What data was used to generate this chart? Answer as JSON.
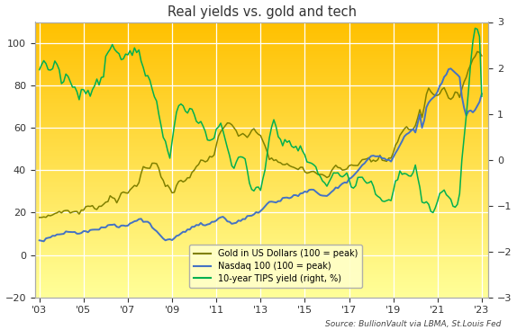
{
  "title": "Real yields vs. gold and tech",
  "source_text": "Source: BullionVault via LBMA, St.Louis Fed",
  "background_top": "#FFC000",
  "background_bottom": "#FFFF99",
  "left_ylim": [
    -20,
    110
  ],
  "right_ylim": [
    -3.0,
    3.0
  ],
  "left_yticks": [
    -20,
    0,
    20,
    40,
    60,
    80,
    100
  ],
  "right_yticks": [
    -3.0,
    -2.0,
    -1.0,
    0.0,
    1.0,
    2.0,
    3.0
  ],
  "xtick_years": [
    2003,
    2005,
    2007,
    2009,
    2011,
    2013,
    2015,
    2017,
    2019,
    2021,
    2023
  ],
  "xtick_labels": [
    "'03",
    "'05",
    "'07",
    "'09",
    "'11",
    "'13",
    "'15",
    "'17",
    "'19",
    "'21",
    "'23"
  ],
  "gold_color": "#808000",
  "nasdaq_color": "#4472C4",
  "tips_color": "#00B050",
  "legend_labels": [
    "Gold in US Dollars (100 = peak)",
    "Nasdaq 100 (100 = peak)",
    "10-year TIPS yield (right, %)"
  ],
  "gold_data": {
    "years": [
      2003.0,
      2003.1,
      2003.2,
      2003.3,
      2003.4,
      2003.5,
      2003.6,
      2003.7,
      2003.8,
      2003.9,
      2004.0,
      2004.1,
      2004.2,
      2004.3,
      2004.4,
      2004.5,
      2004.6,
      2004.7,
      2004.8,
      2004.9,
      2005.0,
      2005.1,
      2005.2,
      2005.3,
      2005.4,
      2005.5,
      2005.6,
      2005.7,
      2005.8,
      2005.9,
      2006.0,
      2006.1,
      2006.2,
      2006.3,
      2006.4,
      2006.5,
      2006.6,
      2006.7,
      2006.8,
      2006.9,
      2007.0,
      2007.1,
      2007.2,
      2007.3,
      2007.4,
      2007.5,
      2007.6,
      2007.7,
      2007.8,
      2007.9,
      2008.0,
      2008.1,
      2008.2,
      2008.3,
      2008.4,
      2008.5,
      2008.6,
      2008.7,
      2008.8,
      2008.9,
      2009.0,
      2009.1,
      2009.2,
      2009.3,
      2009.4,
      2009.5,
      2009.6,
      2009.7,
      2009.8,
      2009.9,
      2010.0,
      2010.1,
      2010.2,
      2010.3,
      2010.4,
      2010.5,
      2010.6,
      2010.7,
      2010.8,
      2010.9,
      2011.0,
      2011.1,
      2011.2,
      2011.3,
      2011.4,
      2011.5,
      2011.6,
      2011.7,
      2011.8,
      2011.9,
      2012.0,
      2012.1,
      2012.2,
      2012.3,
      2012.4,
      2012.5,
      2012.6,
      2012.7,
      2012.8,
      2012.9,
      2013.0,
      2013.1,
      2013.2,
      2013.3,
      2013.4,
      2013.5,
      2013.6,
      2013.7,
      2013.8,
      2013.9,
      2014.0,
      2014.1,
      2014.2,
      2014.3,
      2014.4,
      2014.5,
      2014.6,
      2014.7,
      2014.8,
      2014.9,
      2015.0,
      2015.1,
      2015.2,
      2015.3,
      2015.4,
      2015.5,
      2015.6,
      2015.7,
      2015.8,
      2015.9,
      2016.0,
      2016.1,
      2016.2,
      2016.3,
      2016.4,
      2016.5,
      2016.6,
      2016.7,
      2016.8,
      2016.9,
      2017.0,
      2017.1,
      2017.2,
      2017.3,
      2017.4,
      2017.5,
      2017.6,
      2017.7,
      2017.8,
      2017.9,
      2018.0,
      2018.1,
      2018.2,
      2018.3,
      2018.4,
      2018.5,
      2018.6,
      2018.7,
      2018.8,
      2018.9,
      2019.0,
      2019.1,
      2019.2,
      2019.3,
      2019.4,
      2019.5,
      2019.6,
      2019.7,
      2019.8,
      2019.9,
      2020.0,
      2020.1,
      2020.2,
      2020.3,
      2020.4,
      2020.5,
      2020.6,
      2020.7,
      2020.8,
      2020.9,
      2021.0,
      2021.1,
      2021.2,
      2021.3,
      2021.4,
      2021.5,
      2021.6,
      2021.7,
      2021.8,
      2021.9,
      2022.0,
      2022.1,
      2022.2,
      2022.3,
      2022.4,
      2022.5,
      2022.6,
      2022.7,
      2022.8,
      2022.9,
      2023.0
    ],
    "values": [
      17,
      17,
      18,
      18,
      19,
      19,
      20,
      20,
      20,
      20,
      20,
      21,
      21,
      21,
      21,
      21,
      21,
      20,
      20,
      21,
      21,
      22,
      22,
      22,
      23,
      23,
      24,
      24,
      24,
      24,
      25,
      26,
      28,
      29,
      28,
      27,
      27,
      28,
      28,
      28,
      29,
      30,
      32,
      34,
      35,
      36,
      38,
      40,
      40,
      40,
      40,
      42,
      43,
      43,
      41,
      38,
      36,
      33,
      32,
      31,
      30,
      31,
      33,
      34,
      35,
      36,
      37,
      38,
      38,
      39,
      40,
      41,
      42,
      43,
      43,
      43,
      44,
      46,
      47,
      48,
      52,
      55,
      58,
      60,
      62,
      63,
      62,
      60,
      58,
      57,
      55,
      56,
      57,
      57,
      56,
      56,
      57,
      58,
      58,
      58,
      57,
      54,
      52,
      49,
      46,
      45,
      44,
      43,
      43,
      43,
      43,
      42,
      42,
      42,
      42,
      42,
      41,
      41,
      41,
      41,
      39,
      39,
      39,
      39,
      39,
      38,
      37,
      37,
      37,
      37,
      37,
      38,
      40,
      42,
      44,
      43,
      43,
      42,
      42,
      42,
      42,
      43,
      43,
      44,
      44,
      45,
      46,
      46,
      47,
      47,
      46,
      46,
      45,
      44,
      45,
      44,
      44,
      44,
      44,
      45,
      48,
      51,
      53,
      56,
      58,
      59,
      60,
      60,
      60,
      61,
      62,
      65,
      68,
      65,
      70,
      76,
      78,
      77,
      76,
      76,
      75,
      76,
      77,
      78,
      77,
      76,
      75,
      75,
      76,
      76,
      74,
      78,
      82,
      85,
      88,
      91,
      92,
      94,
      95,
      96,
      95
    ]
  },
  "nasdaq_data": {
    "years": [
      2003.0,
      2003.1,
      2003.2,
      2003.3,
      2003.4,
      2003.5,
      2003.6,
      2003.7,
      2003.8,
      2003.9,
      2004.0,
      2004.1,
      2004.2,
      2004.3,
      2004.4,
      2004.5,
      2004.6,
      2004.7,
      2004.8,
      2004.9,
      2005.0,
      2005.1,
      2005.2,
      2005.3,
      2005.4,
      2005.5,
      2005.6,
      2005.7,
      2005.8,
      2005.9,
      2006.0,
      2006.1,
      2006.2,
      2006.3,
      2006.4,
      2006.5,
      2006.6,
      2006.7,
      2006.8,
      2006.9,
      2007.0,
      2007.1,
      2007.2,
      2007.3,
      2007.4,
      2007.5,
      2007.6,
      2007.7,
      2007.8,
      2007.9,
      2008.0,
      2008.1,
      2008.2,
      2008.3,
      2008.4,
      2008.5,
      2008.6,
      2008.7,
      2008.8,
      2008.9,
      2009.0,
      2009.1,
      2009.2,
      2009.3,
      2009.4,
      2009.5,
      2009.6,
      2009.7,
      2009.8,
      2009.9,
      2010.0,
      2010.1,
      2010.2,
      2010.3,
      2010.4,
      2010.5,
      2010.6,
      2010.7,
      2010.8,
      2010.9,
      2011.0,
      2011.1,
      2011.2,
      2011.3,
      2011.4,
      2011.5,
      2011.6,
      2011.7,
      2011.8,
      2011.9,
      2012.0,
      2012.1,
      2012.2,
      2012.3,
      2012.4,
      2012.5,
      2012.6,
      2012.7,
      2012.8,
      2012.9,
      2013.0,
      2013.1,
      2013.2,
      2013.3,
      2013.4,
      2013.5,
      2013.6,
      2013.7,
      2013.8,
      2013.9,
      2014.0,
      2014.1,
      2014.2,
      2014.3,
      2014.4,
      2014.5,
      2014.6,
      2014.7,
      2014.8,
      2014.9,
      2015.0,
      2015.1,
      2015.2,
      2015.3,
      2015.4,
      2015.5,
      2015.6,
      2015.7,
      2015.8,
      2015.9,
      2016.0,
      2016.1,
      2016.2,
      2016.3,
      2016.4,
      2016.5,
      2016.6,
      2016.7,
      2016.8,
      2016.9,
      2017.0,
      2017.1,
      2017.2,
      2017.3,
      2017.4,
      2017.5,
      2017.6,
      2017.7,
      2017.8,
      2017.9,
      2018.0,
      2018.1,
      2018.2,
      2018.3,
      2018.4,
      2018.5,
      2018.6,
      2018.7,
      2018.8,
      2018.9,
      2019.0,
      2019.1,
      2019.2,
      2019.3,
      2019.4,
      2019.5,
      2019.6,
      2019.7,
      2019.8,
      2019.9,
      2020.0,
      2020.1,
      2020.2,
      2020.3,
      2020.4,
      2020.5,
      2020.6,
      2020.7,
      2020.8,
      2020.9,
      2021.0,
      2021.1,
      2021.2,
      2021.3,
      2021.4,
      2021.5,
      2021.6,
      2021.7,
      2021.8,
      2021.9,
      2022.0,
      2022.1,
      2022.2,
      2022.3,
      2022.4,
      2022.5,
      2022.6,
      2022.7,
      2022.8,
      2022.9,
      2023.0
    ],
    "values": [
      7,
      7,
      7,
      8,
      8,
      8,
      9,
      9,
      10,
      10,
      10,
      10,
      11,
      11,
      11,
      11,
      11,
      10,
      10,
      10,
      11,
      11,
      11,
      12,
      12,
      12,
      12,
      12,
      13,
      13,
      13,
      14,
      14,
      14,
      14,
      13,
      13,
      14,
      14,
      14,
      14,
      15,
      15,
      16,
      16,
      17,
      17,
      16,
      16,
      16,
      15,
      13,
      12,
      11,
      10,
      9,
      8,
      7,
      7,
      7,
      7,
      8,
      9,
      9,
      10,
      11,
      11,
      12,
      12,
      13,
      13,
      14,
      14,
      15,
      14,
      14,
      15,
      15,
      16,
      16,
      17,
      18,
      18,
      18,
      17,
      16,
      16,
      15,
      15,
      15,
      16,
      16,
      17,
      17,
      18,
      18,
      18,
      19,
      20,
      20,
      21,
      22,
      23,
      24,
      25,
      25,
      25,
      25,
      26,
      26,
      27,
      27,
      27,
      27,
      27,
      28,
      28,
      28,
      29,
      29,
      30,
      30,
      31,
      31,
      31,
      30,
      29,
      28,
      28,
      28,
      28,
      29,
      30,
      31,
      32,
      32,
      33,
      34,
      34,
      34,
      36,
      37,
      38,
      39,
      40,
      41,
      42,
      43,
      44,
      45,
      46,
      47,
      47,
      47,
      47,
      46,
      46,
      45,
      45,
      44,
      46,
      48,
      50,
      52,
      54,
      56,
      57,
      58,
      59,
      60,
      58,
      62,
      66,
      60,
      64,
      70,
      72,
      73,
      74,
      75,
      77,
      80,
      82,
      85,
      86,
      88,
      88,
      87,
      86,
      85,
      84,
      75,
      70,
      66,
      68,
      68,
      67,
      68,
      70,
      72,
      76
    ]
  },
  "tips_data": {
    "years": [
      2003.0,
      2003.1,
      2003.2,
      2003.3,
      2003.4,
      2003.5,
      2003.6,
      2003.7,
      2003.8,
      2003.9,
      2004.0,
      2004.1,
      2004.2,
      2004.3,
      2004.4,
      2004.5,
      2004.6,
      2004.7,
      2004.8,
      2004.9,
      2005.0,
      2005.1,
      2005.2,
      2005.3,
      2005.4,
      2005.5,
      2005.6,
      2005.7,
      2005.8,
      2005.9,
      2006.0,
      2006.1,
      2006.2,
      2006.3,
      2006.4,
      2006.5,
      2006.6,
      2006.7,
      2006.8,
      2006.9,
      2007.0,
      2007.1,
      2007.2,
      2007.3,
      2007.4,
      2007.5,
      2007.6,
      2007.7,
      2007.8,
      2007.9,
      2008.0,
      2008.1,
      2008.2,
      2008.3,
      2008.4,
      2008.5,
      2008.6,
      2008.7,
      2008.8,
      2008.9,
      2009.0,
      2009.1,
      2009.2,
      2009.3,
      2009.4,
      2009.5,
      2009.6,
      2009.7,
      2009.8,
      2009.9,
      2010.0,
      2010.1,
      2010.2,
      2010.3,
      2010.4,
      2010.5,
      2010.6,
      2010.7,
      2010.8,
      2010.9,
      2011.0,
      2011.1,
      2011.2,
      2011.3,
      2011.4,
      2011.5,
      2011.6,
      2011.7,
      2011.8,
      2011.9,
      2012.0,
      2012.1,
      2012.2,
      2012.3,
      2012.4,
      2012.5,
      2012.6,
      2012.7,
      2012.8,
      2012.9,
      2013.0,
      2013.1,
      2013.2,
      2013.3,
      2013.4,
      2013.5,
      2013.6,
      2013.7,
      2013.8,
      2013.9,
      2014.0,
      2014.1,
      2014.2,
      2014.3,
      2014.4,
      2014.5,
      2014.6,
      2014.7,
      2014.8,
      2014.9,
      2015.0,
      2015.1,
      2015.2,
      2015.3,
      2015.4,
      2015.5,
      2015.6,
      2015.7,
      2015.8,
      2015.9,
      2016.0,
      2016.1,
      2016.2,
      2016.3,
      2016.4,
      2016.5,
      2016.6,
      2016.7,
      2016.8,
      2016.9,
      2017.0,
      2017.1,
      2017.2,
      2017.3,
      2017.4,
      2017.5,
      2017.6,
      2017.7,
      2017.8,
      2017.9,
      2018.0,
      2018.1,
      2018.2,
      2018.3,
      2018.4,
      2018.5,
      2018.6,
      2018.7,
      2018.8,
      2018.9,
      2019.0,
      2019.1,
      2019.2,
      2019.3,
      2019.4,
      2019.5,
      2019.6,
      2019.7,
      2019.8,
      2019.9,
      2020.0,
      2020.1,
      2020.2,
      2020.3,
      2020.4,
      2020.5,
      2020.6,
      2020.7,
      2020.8,
      2020.9,
      2021.0,
      2021.1,
      2021.2,
      2021.3,
      2021.4,
      2021.5,
      2021.6,
      2021.7,
      2021.8,
      2021.9,
      2022.0,
      2022.1,
      2022.2,
      2022.3,
      2022.4,
      2022.5,
      2022.6,
      2022.7,
      2022.8,
      2022.9,
      2023.0
    ],
    "values": [
      2.0,
      2.1,
      2.2,
      2.1,
      2.0,
      1.9,
      2.0,
      2.1,
      2.0,
      1.9,
      1.7,
      1.8,
      1.9,
      1.8,
      1.7,
      1.6,
      1.7,
      1.6,
      1.5,
      1.6,
      1.6,
      1.5,
      1.6,
      1.5,
      1.6,
      1.7,
      1.8,
      1.7,
      1.8,
      1.8,
      2.2,
      2.3,
      2.4,
      2.5,
      2.4,
      2.3,
      2.3,
      2.2,
      2.2,
      2.2,
      2.2,
      2.3,
      2.3,
      2.4,
      2.3,
      2.3,
      2.2,
      2.1,
      2.0,
      1.9,
      1.8,
      1.6,
      1.4,
      1.2,
      1.0,
      0.8,
      0.6,
      0.4,
      0.2,
      0.1,
      0.5,
      0.8,
      1.0,
      1.1,
      1.2,
      1.2,
      1.1,
      1.0,
      1.1,
      1.1,
      1.0,
      0.9,
      0.8,
      0.8,
      0.7,
      0.6,
      0.5,
      0.4,
      0.4,
      0.4,
      0.6,
      0.7,
      0.8,
      0.7,
      0.5,
      0.3,
      0.1,
      -0.1,
      -0.2,
      -0.1,
      0.0,
      0.1,
      0.1,
      0.0,
      -0.3,
      -0.5,
      -0.6,
      -0.7,
      -0.6,
      -0.6,
      -0.6,
      -0.4,
      -0.2,
      0.2,
      0.5,
      0.7,
      0.8,
      0.7,
      0.6,
      0.6,
      0.5,
      0.5,
      0.4,
      0.4,
      0.4,
      0.4,
      0.4,
      0.3,
      0.3,
      0.2,
      0.1,
      0.0,
      -0.1,
      -0.2,
      -0.2,
      -0.2,
      -0.3,
      -0.4,
      -0.5,
      -0.5,
      -0.5,
      -0.4,
      -0.3,
      -0.3,
      -0.3,
      -0.3,
      -0.3,
      -0.3,
      -0.3,
      -0.3,
      -0.4,
      -0.5,
      -0.5,
      -0.5,
      -0.4,
      -0.4,
      -0.4,
      -0.5,
      -0.5,
      -0.5,
      -0.4,
      -0.5,
      -0.7,
      -0.8,
      -0.8,
      -0.8,
      -0.8,
      -0.9,
      -0.9,
      -0.9,
      -0.6,
      -0.5,
      -0.5,
      -0.4,
      -0.4,
      -0.4,
      -0.4,
      -0.4,
      -0.4,
      -0.3,
      -0.2,
      -0.4,
      -0.6,
      -0.9,
      -1.0,
      -1.0,
      -1.0,
      -1.1,
      -1.1,
      -1.1,
      -1.0,
      -0.9,
      -0.8,
      -0.7,
      -0.8,
      -0.9,
      -1.0,
      -1.1,
      -1.1,
      -1.0,
      -0.8,
      0.0,
      0.5,
      1.0,
      1.5,
      2.0,
      2.5,
      2.8,
      2.9,
      2.8,
      1.5
    ]
  }
}
